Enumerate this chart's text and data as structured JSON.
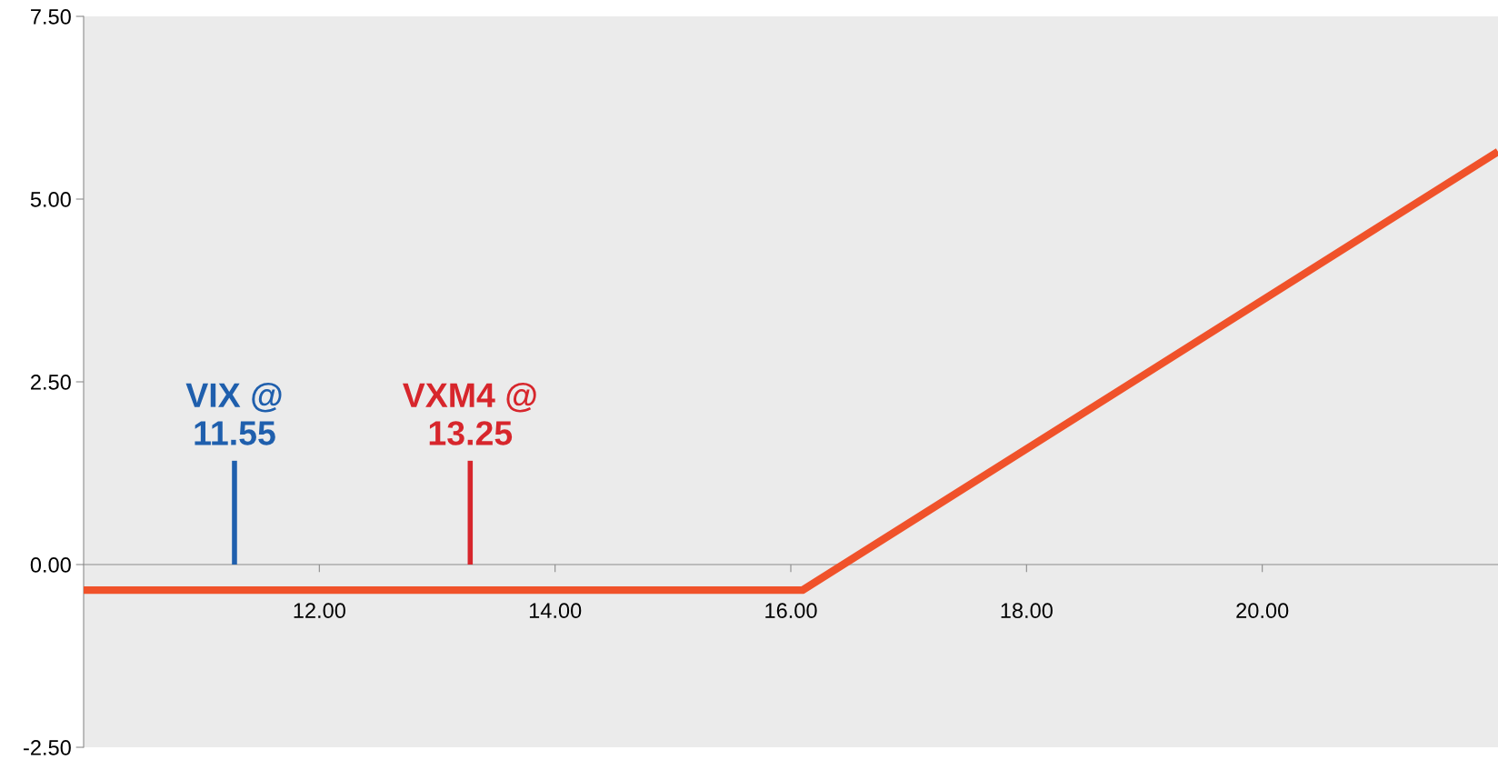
{
  "chart_data": {
    "type": "line",
    "series": [
      {
        "color": "#f0522a",
        "x": [
          10,
          16.1,
          22
        ],
        "values": [
          -0.35,
          -0.35,
          5.65
        ]
      },
      {
        "name": "VIX @\n11.55",
        "color": "#1f5fad",
        "x": [
          11.28,
          11.28
        ],
        "values": [
          0,
          1.42
        ]
      },
      {
        "name": "VXM4 @\n13.25",
        "color": "#d7262c",
        "x": [
          13.28,
          13.28
        ],
        "values": [
          0,
          1.42
        ]
      }
    ],
    "xlim": [
      10,
      22
    ],
    "xticks": [
      {
        "value": 12,
        "label": "12.00"
      },
      {
        "value": 14,
        "label": "14.00"
      },
      {
        "value": 16,
        "label": "16.00"
      },
      {
        "value": 18,
        "label": "18.00"
      },
      {
        "value": 20,
        "label": "20.00"
      }
    ],
    "ylim": [
      -2.5,
      7.5
    ],
    "yticks": [
      {
        "value": -2.5,
        "label": "-2.50"
      },
      {
        "value": 0,
        "label": "0.00"
      },
      {
        "value": 2.5,
        "label": "2.50"
      },
      {
        "value": 5,
        "label": "5.00"
      },
      {
        "value": 7.5,
        "label": "7.50"
      }
    ],
    "grid": false,
    "legend": false,
    "marker": "none",
    "line_style": "solid"
  }
}
